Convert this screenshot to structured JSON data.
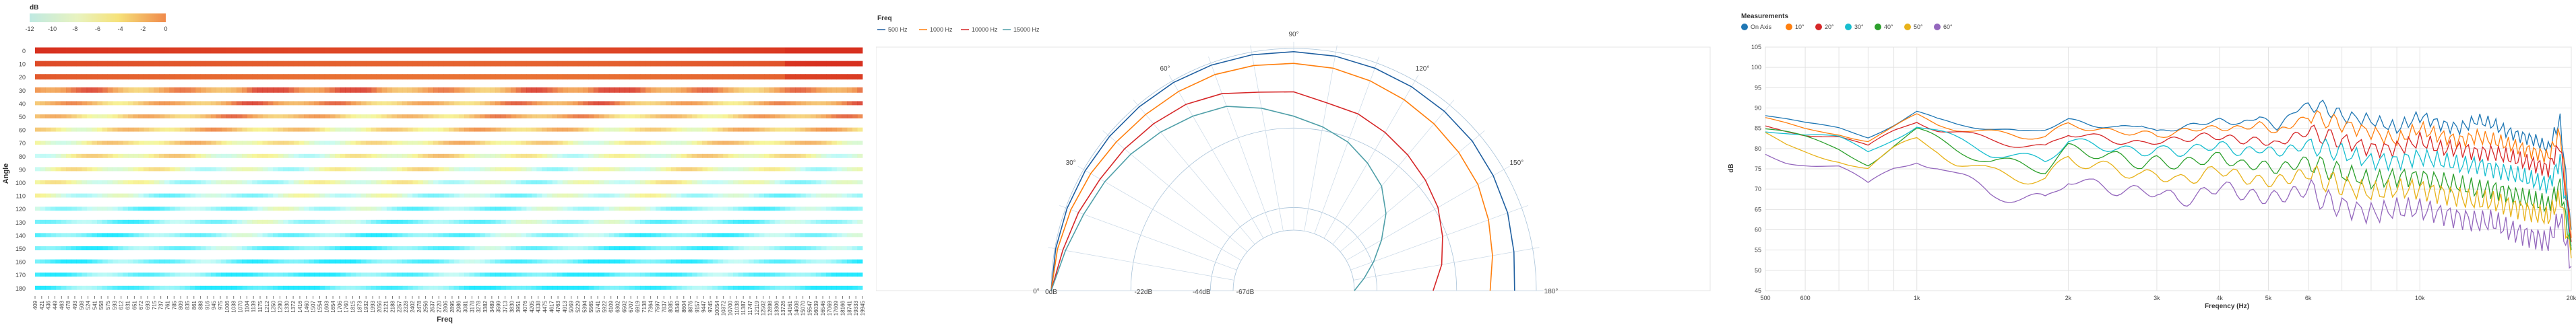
{
  "colors": {
    "series": [
      "#1f77b4",
      "#ff7f0e",
      "#d62728",
      "#17becf",
      "#2ca02c",
      "#e8b21a",
      "#9467bd"
    ],
    "heat_low": "#00e5ff",
    "heat_mid": "#f6f58a",
    "heat_high": "#d7301f",
    "grid": "#e3e3e3",
    "polar_series": [
      "#1f5fa0",
      "#ff7f0e",
      "#d62728",
      "#4f9fa8"
    ]
  },
  "heatmap": {
    "legend_title": "dB",
    "legend_ticks": [
      "-12",
      "-10",
      "-8",
      "-6",
      "-4",
      "-2",
      "0"
    ],
    "ylabel": "Angle",
    "xlabel": "Freq",
    "angles": [
      "0",
      "10",
      "20",
      "30",
      "40",
      "50",
      "60",
      "70",
      "80",
      "90",
      "100",
      "110",
      "120",
      "130",
      "140",
      "150",
      "160",
      "170",
      "180"
    ],
    "freq_ticks": [
      "409",
      "421",
      "436",
      "449",
      "463",
      "478",
      "493",
      "508",
      "524",
      "541",
      "558",
      "575",
      "593",
      "612",
      "631",
      "651",
      "672",
      "693",
      "715",
      "737",
      "761",
      "785",
      "809",
      "835",
      "861",
      "888",
      "916",
      "945",
      "975",
      "1006",
      "1038",
      "1070",
      "1104",
      "1139",
      "1175",
      "1212",
      "1250",
      "1290",
      "1330",
      "1372",
      "1416",
      "1460",
      "1507",
      "1554",
      "1603",
      "1654",
      "1706",
      "1760",
      "1815",
      "1873",
      "1932",
      "1993",
      "2056",
      "2121",
      "2188",
      "2257",
      "2328",
      "2402",
      "2478",
      "2556",
      "2637",
      "2720",
      "2806",
      "2895",
      "2986",
      "3081",
      "3178",
      "3278",
      "3382",
      "3489",
      "3599",
      "3713",
      "3830",
      "3951",
      "4076",
      "4205",
      "4338",
      "4475",
      "4617",
      "4763",
      "4913",
      "5069",
      "5229",
      "5394",
      "5565",
      "5741",
      "5922",
      "6109",
      "6302",
      "6502",
      "6707",
      "6919",
      "7138",
      "7364",
      "7597",
      "7837",
      "8085",
      "8340",
      "8604",
      "8876",
      "9157",
      "9447",
      "9745",
      "10054",
      "10372",
      "10700",
      "11038",
      "11387",
      "11747",
      "12119",
      "12502",
      "12898",
      "13306",
      "13726",
      "14161",
      "14608",
      "15070",
      "15547",
      "16039",
      "16546",
      "17069",
      "17609",
      "18166",
      "18741",
      "19333",
      "19945"
    ]
  },
  "polar": {
    "legend_title": "Freq",
    "series_names": [
      "500 Hz",
      "1000 Hz",
      "10000 Hz",
      "15000 Hz"
    ],
    "angle_labels": [
      "0°",
      "30°",
      "60°",
      "90°",
      "120°",
      "150°",
      "180°"
    ],
    "ring_labels": [
      "0dB",
      "-22dB",
      "-44dB",
      "-67dB"
    ]
  },
  "chart_data": [
    {
      "type": "heatmap",
      "xlabel": "Freq",
      "ylabel": "Angle",
      "legend_title": "dB",
      "color_range": [
        -12,
        0
      ],
      "rows": [
        "0",
        "10",
        "20",
        "30",
        "40",
        "50",
        "60",
        "70",
        "80",
        "90",
        "100",
        "110",
        "120",
        "130",
        "140",
        "150",
        "160",
        "170",
        "180"
      ],
      "x_range_hz": [
        409,
        19945
      ],
      "row_mean_db": [
        0,
        -0.5,
        -0.8,
        -1.6,
        -2.5,
        -3.3,
        -4.2,
        -5,
        -5.8,
        -6.5,
        -7,
        -7.8,
        -8.5,
        -8.8,
        -9.5,
        -9.8,
        -10.2,
        -10.4,
        -10.8
      ]
    },
    {
      "type": "polar",
      "legend_title": "Freq",
      "angle_range_deg": [
        0,
        180
      ],
      "radial_ticks_db": [
        0,
        -22,
        -44,
        -67
      ],
      "series": [
        {
          "name": "500 Hz",
          "angles": [
            0,
            10,
            20,
            30,
            40,
            50,
            60,
            70,
            80,
            90,
            100,
            110,
            120,
            130,
            140,
            150,
            160,
            170,
            180
          ],
          "db": [
            0,
            -0.3,
            -0.5,
            -0.7,
            -0.8,
            -0.8,
            -0.7,
            -0.8,
            -1,
            -1.2,
            -1.5,
            -2,
            -2.5,
            -3,
            -3.5,
            -4.5,
            -5.5,
            -7,
            -8
          ]
        },
        {
          "name": "1000 Hz",
          "angles": [
            0,
            10,
            20,
            30,
            40,
            50,
            60,
            70,
            80,
            90,
            100,
            110,
            120,
            130,
            140,
            150,
            160,
            170,
            180
          ],
          "db": [
            0,
            -1,
            -2,
            -3,
            -4,
            -4.5,
            -4.5,
            -4.5,
            -5,
            -5.5,
            -6,
            -7,
            -8,
            -9,
            -10,
            -11,
            -13,
            -15,
            -17
          ]
        },
        {
          "name": "10000 Hz",
          "angles": [
            0,
            10,
            20,
            30,
            40,
            50,
            60,
            70,
            80,
            90,
            100,
            110,
            120,
            130,
            140,
            150,
            160,
            170,
            180
          ],
          "db": [
            0,
            -3,
            -5,
            -7,
            -8,
            -9,
            -10,
            -12,
            -15,
            -16,
            -19,
            -20,
            -22,
            -24,
            -26,
            -28,
            -31,
            -34,
            -38
          ]
        },
        {
          "name": "15000 Hz",
          "angles": [
            0,
            10,
            20,
            30,
            40,
            50,
            60,
            70,
            80,
            90,
            100,
            110,
            120,
            130,
            140,
            150,
            160,
            170,
            180
          ],
          "db": [
            0,
            -4,
            -7,
            -9,
            -11,
            -13,
            -15,
            -17,
            -21,
            -25,
            -28,
            -31,
            -35,
            -39,
            -45,
            -52,
            -58,
            -63,
            -67
          ]
        }
      ]
    },
    {
      "type": "line",
      "title": "Measurements",
      "xlabel": "Freqency (Hz)",
      "ylabel": "dB",
      "xscale": "log",
      "xlim": [
        500,
        20000
      ],
      "ylim": [
        45,
        105
      ],
      "xticks": [
        "500",
        "600",
        "1k",
        "2k",
        "3k",
        "4k",
        "5k",
        "6k",
        "10k",
        "20k"
      ],
      "yticks": [
        "45",
        "50",
        "55",
        "60",
        "65",
        "70",
        "75",
        "80",
        "85",
        "90",
        "95",
        "100",
        "105"
      ],
      "series_names": [
        "On Axis",
        "10°",
        "20°",
        "30°",
        "40°",
        "50°",
        "60°"
      ],
      "x": [
        500,
        550,
        600,
        700,
        800,
        900,
        1000,
        1100,
        1200,
        1400,
        1600,
        1800,
        2000,
        2200,
        2500,
        2800,
        3000,
        3300,
        3600,
        4000,
        4400,
        4800,
        5200,
        5600,
        6000,
        6500,
        7000,
        8000,
        9000,
        10000,
        11000,
        12000,
        13000,
        14000,
        15000,
        16000,
        17000,
        18000,
        19000,
        20000
      ],
      "series": [
        {
          "name": "On Axis",
          "y": [
            88,
            87,
            86,
            85,
            83,
            86,
            89,
            87,
            86,
            85,
            84,
            85,
            87,
            86,
            85,
            86,
            84,
            85,
            86,
            87,
            86,
            88,
            85,
            89,
            91,
            90,
            88,
            87,
            85,
            88,
            86,
            85,
            87,
            86,
            84,
            83,
            82,
            80,
            87,
            60
          ]
        },
        {
          "name": "10°",
          "y": [
            87,
            86,
            85,
            84,
            82,
            85,
            88,
            86,
            85,
            84,
            83,
            83,
            86,
            85,
            84,
            84,
            83,
            84,
            85,
            85,
            85,
            86,
            84,
            86,
            88,
            87,
            86,
            84,
            82,
            85,
            83,
            82,
            83,
            82,
            81,
            80,
            79,
            78,
            84,
            58
          ]
        },
        {
          "name": "20°",
          "y": [
            86,
            85,
            84,
            83,
            80,
            84,
            87,
            85,
            84,
            82,
            81,
            80,
            84,
            83,
            82,
            81,
            82,
            82,
            83,
            83,
            82,
            82,
            81,
            83,
            84,
            83,
            82,
            80,
            80,
            82,
            80,
            80,
            79,
            79,
            78,
            77,
            76,
            75,
            81,
            57
          ]
        },
        {
          "name": "30°",
          "y": [
            85,
            84,
            83,
            82,
            79,
            83,
            86,
            84,
            82,
            79,
            78,
            77,
            82,
            81,
            80,
            79,
            80,
            79,
            80,
            81,
            79,
            80,
            79,
            80,
            81,
            80,
            79,
            77,
            77,
            78,
            77,
            76,
            76,
            75,
            74,
            73,
            72,
            71,
            77,
            56
          ]
        },
        {
          "name": "40°",
          "y": [
            84,
            83,
            82,
            80,
            77,
            81,
            84,
            82,
            80,
            77,
            76,
            75,
            80,
            79,
            78,
            76,
            77,
            76,
            77,
            78,
            76,
            76,
            75,
            76,
            77,
            75,
            74,
            72,
            73,
            73,
            72,
            71,
            70,
            70,
            69,
            68,
            67,
            66,
            71,
            55
          ]
        },
        {
          "name": "50°",
          "y": [
            83,
            81,
            80,
            78,
            75,
            79,
            82,
            80,
            77,
            74,
            73,
            72,
            78,
            76,
            75,
            73,
            74,
            72,
            73,
            75,
            73,
            72,
            72,
            73,
            74,
            72,
            71,
            69,
            70,
            70,
            69,
            68,
            67,
            67,
            66,
            65,
            64,
            63,
            68,
            53
          ]
        },
        {
          "name": "60°",
          "y": [
            80,
            78,
            77,
            75,
            70,
            75,
            78,
            76,
            73,
            69,
            68,
            67,
            73,
            71,
            70,
            69,
            70,
            67,
            68,
            71,
            69,
            68,
            68,
            69,
            70,
            67,
            66,
            64,
            65,
            65,
            64,
            63,
            62,
            62,
            60,
            59,
            58,
            57,
            63,
            51
          ]
        }
      ]
    }
  ]
}
